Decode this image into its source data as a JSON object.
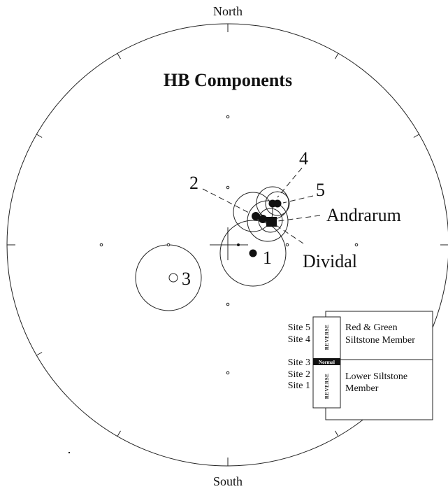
{
  "header": {
    "title": "HB Components"
  },
  "directions": {
    "north": "North",
    "south": "South"
  },
  "sites": [
    {
      "label": "1"
    },
    {
      "label": "2"
    },
    {
      "label": "3"
    },
    {
      "label": "4"
    },
    {
      "label": "5"
    }
  ],
  "places": {
    "andrarum": "Andrarum",
    "dividal": "Dividal"
  },
  "legend": {
    "sites": [
      "Site 5",
      "Site 4",
      "Site 3",
      "Site 2",
      "Site 1"
    ],
    "polarity": [
      "REVERSE",
      "Normal",
      "REVERSE"
    ],
    "upper_member": [
      "Red & Green",
      "Siltstone Member"
    ],
    "lower_member": [
      "Lower Siltstone",
      "Member"
    ]
  }
}
